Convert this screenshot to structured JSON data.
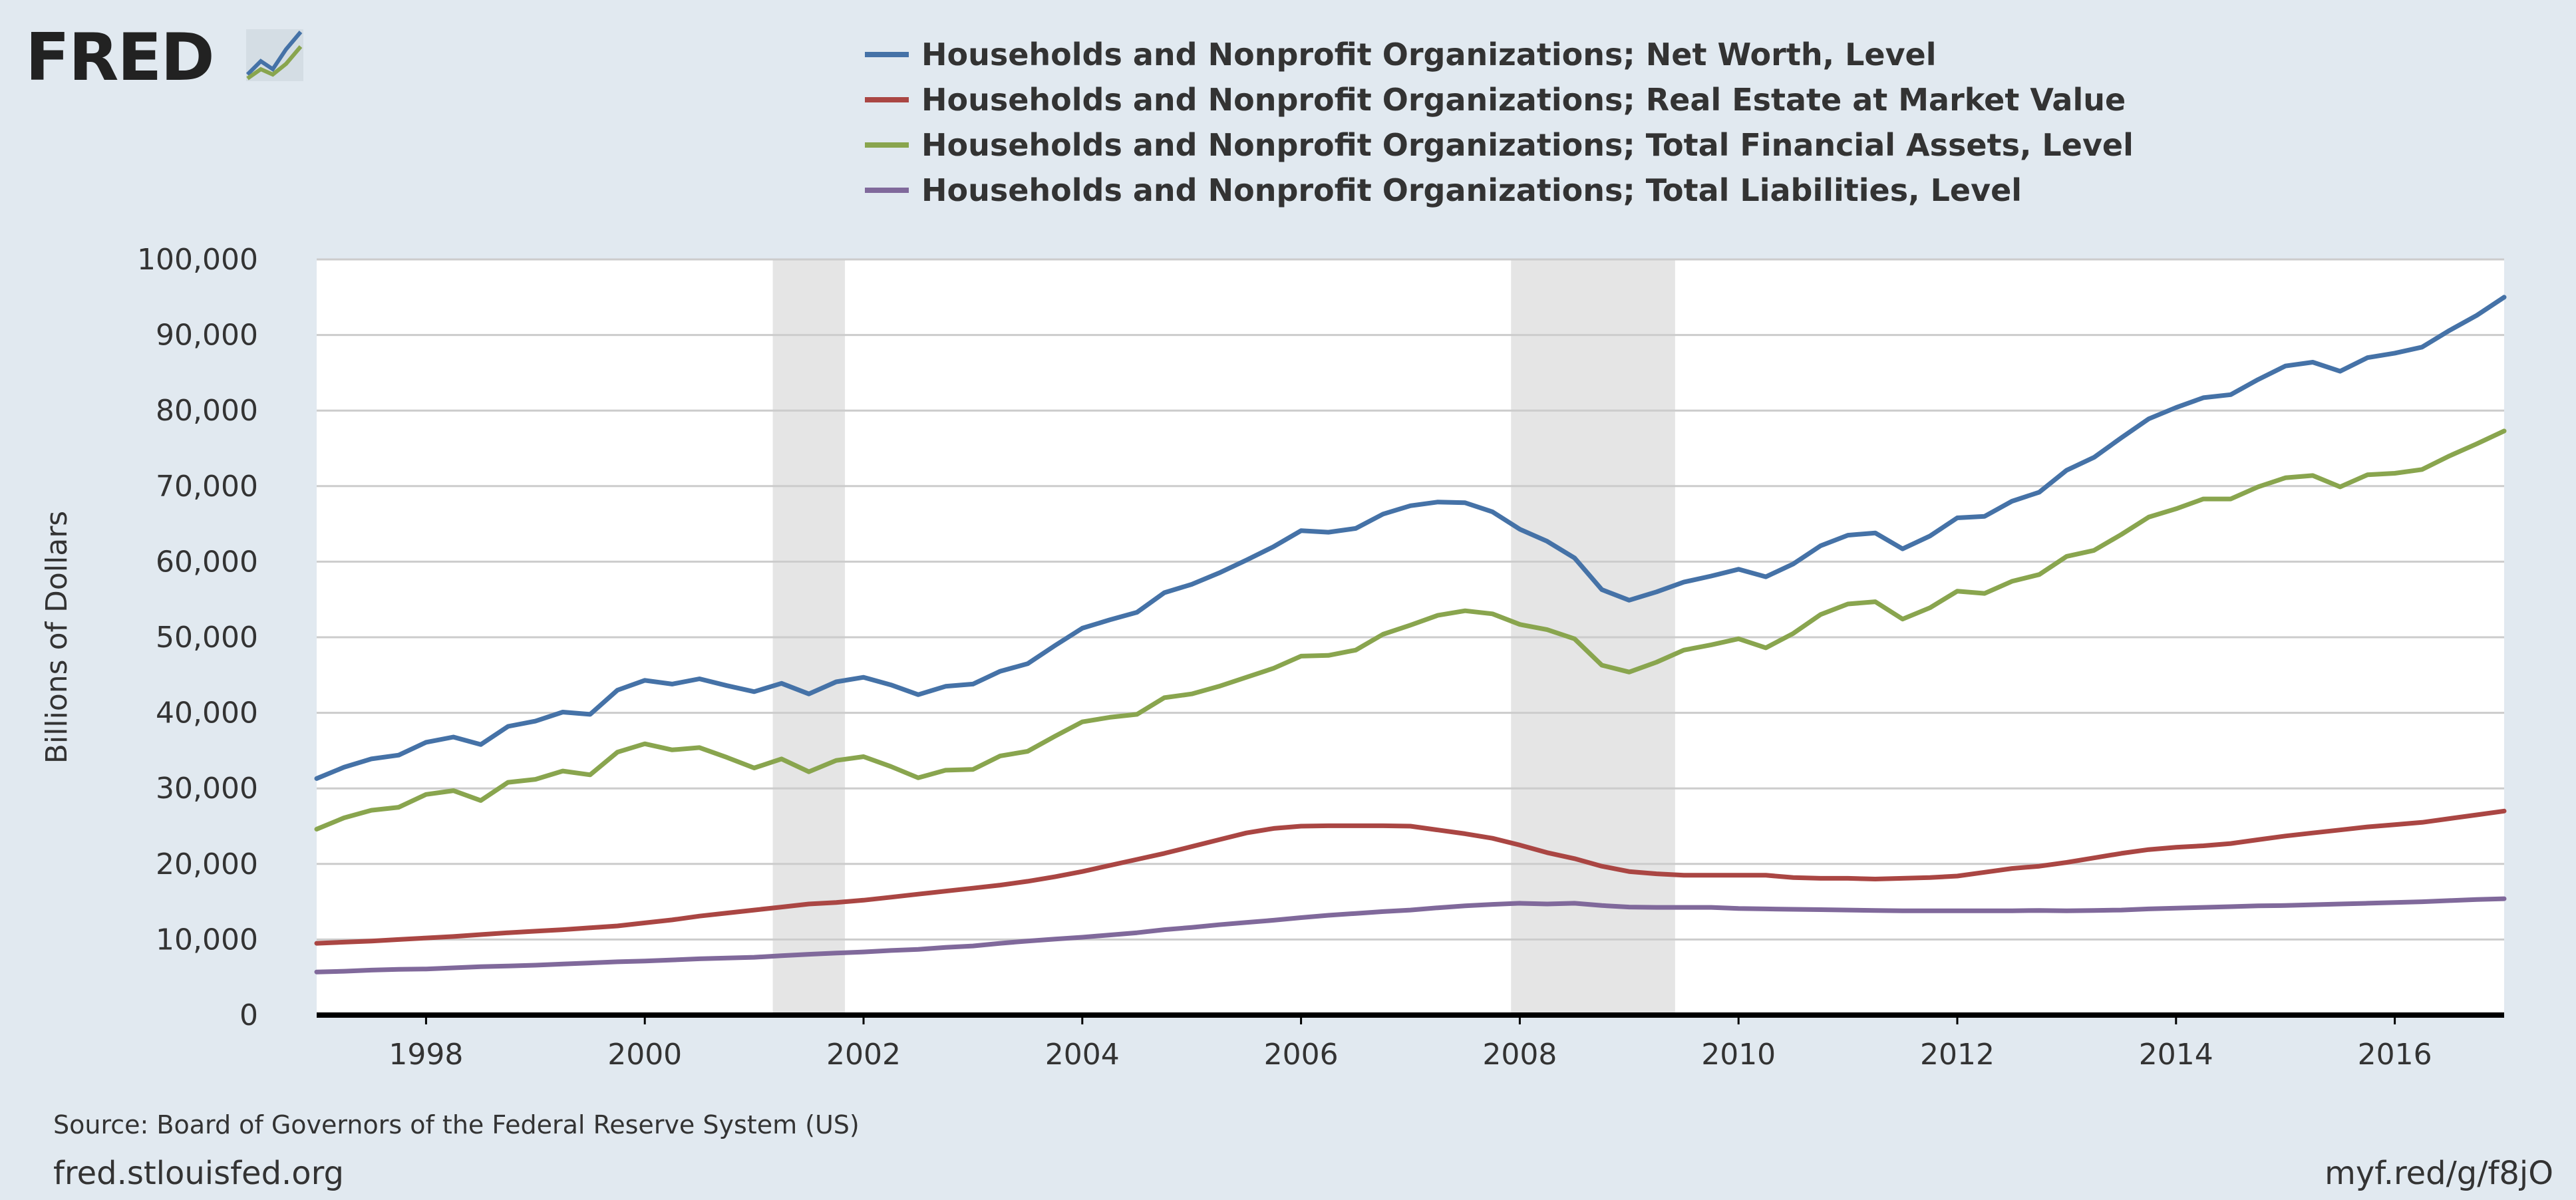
{
  "header": {
    "logo_text": "FRED",
    "logo_icon": "line-chart-icon"
  },
  "footer": {
    "source": "Source: Board of Governors of the Federal Reserve System (US)",
    "site": "fred.stlouisfed.org",
    "short_link": "myf.red/g/f8jO"
  },
  "colors": {
    "background": "#e1e9f0",
    "plot_background": "#ffffff",
    "recession": "#e5e5e5",
    "grid": "#cccccc",
    "baseline": "#000000",
    "text": "#333333"
  },
  "chart_data": {
    "type": "line",
    "title": "",
    "xlabel": "",
    "ylabel": "Billions of Dollars",
    "xlim": [
      1997.0,
      2017.0
    ],
    "ylim": [
      0,
      100000
    ],
    "grid": true,
    "legend_position": "top-center",
    "y_ticks": [
      {
        "value": 0,
        "label": "0"
      },
      {
        "value": 10000,
        "label": "10,000"
      },
      {
        "value": 20000,
        "label": "20,000"
      },
      {
        "value": 30000,
        "label": "30,000"
      },
      {
        "value": 40000,
        "label": "40,000"
      },
      {
        "value": 50000,
        "label": "50,000"
      },
      {
        "value": 60000,
        "label": "60,000"
      },
      {
        "value": 70000,
        "label": "70,000"
      },
      {
        "value": 80000,
        "label": "80,000"
      },
      {
        "value": 90000,
        "label": "90,000"
      },
      {
        "value": 100000,
        "label": "100,000"
      }
    ],
    "x_ticks": [
      {
        "value": 1998,
        "label": "1998"
      },
      {
        "value": 2000,
        "label": "2000"
      },
      {
        "value": 2002,
        "label": "2002"
      },
      {
        "value": 2004,
        "label": "2004"
      },
      {
        "value": 2006,
        "label": "2006"
      },
      {
        "value": 2008,
        "label": "2008"
      },
      {
        "value": 2010,
        "label": "2010"
      },
      {
        "value": 2012,
        "label": "2012"
      },
      {
        "value": 2014,
        "label": "2014"
      },
      {
        "value": 2016,
        "label": "2016"
      }
    ],
    "recessions": [
      {
        "start": 2001.17,
        "end": 2001.83
      },
      {
        "start": 2007.92,
        "end": 2009.42
      }
    ],
    "x": [
      1997.0,
      1997.25,
      1997.5,
      1997.75,
      1998.0,
      1998.25,
      1998.5,
      1998.75,
      1999.0,
      1999.25,
      1999.5,
      1999.75,
      2000.0,
      2000.25,
      2000.5,
      2000.75,
      2001.0,
      2001.25,
      2001.5,
      2001.75,
      2002.0,
      2002.25,
      2002.5,
      2002.75,
      2003.0,
      2003.25,
      2003.5,
      2003.75,
      2004.0,
      2004.25,
      2004.5,
      2004.75,
      2005.0,
      2005.25,
      2005.5,
      2005.75,
      2006.0,
      2006.25,
      2006.5,
      2006.75,
      2007.0,
      2007.25,
      2007.5,
      2007.75,
      2008.0,
      2008.25,
      2008.5,
      2008.75,
      2009.0,
      2009.25,
      2009.5,
      2009.75,
      2010.0,
      2010.25,
      2010.5,
      2010.75,
      2011.0,
      2011.25,
      2011.5,
      2011.75,
      2012.0,
      2012.25,
      2012.5,
      2012.75,
      2013.0,
      2013.25,
      2013.5,
      2013.75,
      2014.0,
      2014.25,
      2014.5,
      2014.75,
      2015.0,
      2015.25,
      2015.5,
      2015.75,
      2016.0,
      2016.25,
      2016.5,
      2016.75,
      2017.0
    ],
    "series": [
      {
        "name": "Households and Nonprofit Organizations; Net Worth, Level",
        "color": "#4572a7",
        "values": [
          31300,
          32800,
          33900,
          34400,
          36100,
          36800,
          35800,
          38200,
          38900,
          40100,
          39800,
          43000,
          44300,
          43800,
          44500,
          43600,
          42800,
          43900,
          42500,
          44100,
          44700,
          43700,
          42400,
          43500,
          43800,
          45500,
          46500,
          48900,
          51200,
          52300,
          53300,
          55900,
          57000,
          58500,
          60200,
          62000,
          64100,
          63900,
          64400,
          66300,
          67400,
          67900,
          67800,
          66600,
          64300,
          62700,
          60500,
          56300,
          54900,
          56000,
          57300,
          58100,
          59000,
          58000,
          59700,
          62100,
          63500,
          63800,
          61700,
          63400,
          65800,
          66000,
          68000,
          69200,
          72100,
          73800,
          76400,
          78900,
          80400,
          81700,
          82100,
          84100,
          85900,
          86400,
          85200,
          87000,
          87600,
          88400,
          90600,
          92600,
          95000
        ]
      },
      {
        "name": "Households and Nonprofit Organizations; Real Estate at Market Value",
        "color": "#aa4643",
        "values": [
          9500,
          9650,
          9800,
          10000,
          10200,
          10400,
          10650,
          10900,
          11100,
          11300,
          11550,
          11800,
          12200,
          12600,
          13100,
          13500,
          13900,
          14300,
          14700,
          14900,
          15200,
          15600,
          16000,
          16400,
          16800,
          17200,
          17700,
          18300,
          19000,
          19800,
          20600,
          21400,
          22300,
          23200,
          24100,
          24700,
          25000,
          25050,
          25050,
          25050,
          25000,
          24500,
          24000,
          23400,
          22500,
          21500,
          20700,
          19700,
          19000,
          18700,
          18500,
          18500,
          18500,
          18500,
          18200,
          18100,
          18100,
          18000,
          18100,
          18200,
          18400,
          18900,
          19400,
          19700,
          20200,
          20800,
          21400,
          21900,
          22200,
          22400,
          22700,
          23200,
          23700,
          24100,
          24500,
          24900,
          25200,
          25500,
          26000,
          26500,
          27000
        ]
      },
      {
        "name": "Households and Nonprofit Organizations; Total Financial Assets, Level",
        "color": "#89a54e",
        "values": [
          24600,
          26100,
          27100,
          27500,
          29200,
          29700,
          28400,
          30800,
          31200,
          32300,
          31800,
          34800,
          35900,
          35100,
          35400,
          34100,
          32700,
          33900,
          32200,
          33700,
          34200,
          32900,
          31400,
          32400,
          32500,
          34300,
          34900,
          36900,
          38800,
          39400,
          39800,
          42000,
          42500,
          43500,
          44700,
          45900,
          47500,
          47600,
          48300,
          50400,
          51600,
          52900,
          53500,
          53100,
          51700,
          51000,
          49800,
          46300,
          45400,
          46700,
          48300,
          49000,
          49800,
          48600,
          50500,
          53000,
          54400,
          54700,
          52400,
          53900,
          56100,
          55800,
          57400,
          58300,
          60700,
          61500,
          63600,
          65900,
          67000,
          68300,
          68300,
          69900,
          71100,
          71400,
          69900,
          71500,
          71700,
          72200,
          74000,
          75600,
          77300
        ]
      },
      {
        "name": "Households and Nonprofit Organizations; Total Liabilities, Level",
        "color": "#80699b",
        "values": [
          5700,
          5800,
          5950,
          6050,
          6100,
          6250,
          6400,
          6500,
          6600,
          6750,
          6900,
          7050,
          7150,
          7300,
          7450,
          7550,
          7650,
          7850,
          8050,
          8200,
          8350,
          8550,
          8700,
          8950,
          9150,
          9500,
          9800,
          10050,
          10300,
          10600,
          10900,
          11300,
          11600,
          11950,
          12250,
          12550,
          12900,
          13200,
          13450,
          13700,
          13900,
          14200,
          14450,
          14650,
          14800,
          14700,
          14800,
          14500,
          14300,
          14250,
          14250,
          14250,
          14100,
          14050,
          14000,
          13950,
          13900,
          13850,
          13800,
          13800,
          13800,
          13800,
          13800,
          13850,
          13800,
          13850,
          13900,
          14050,
          14150,
          14250,
          14350,
          14450,
          14500,
          14600,
          14700,
          14800,
          14900,
          15000,
          15150,
          15300,
          15400
        ]
      }
    ]
  }
}
